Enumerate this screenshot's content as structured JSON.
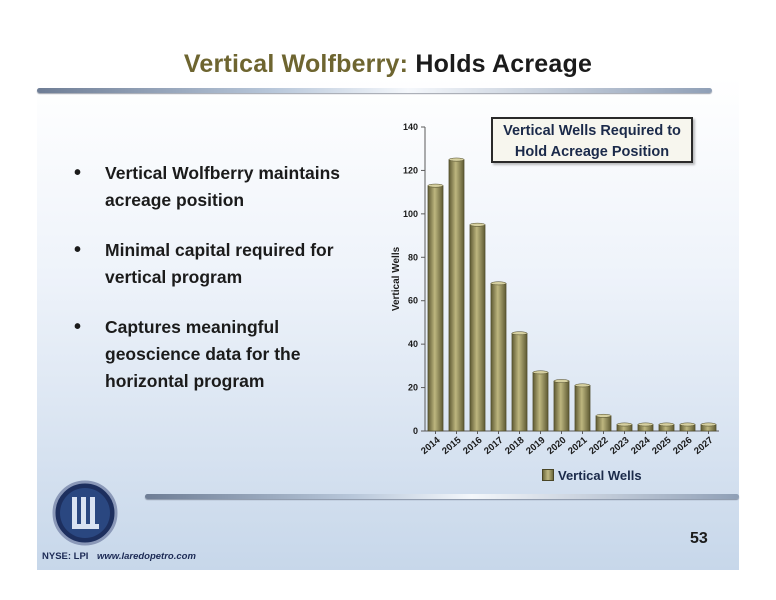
{
  "slide": {
    "title_part1": "Vertical Wolfberry:",
    "title_part2": "Holds Acreage",
    "bullets": [
      "Vertical Wolfberry maintains acreage position",
      "Minimal capital required for vertical program",
      "Captures meaningful geoscience data for the horizontal program"
    ],
    "callout": "Vertical Wells Required to Hold Acreage Position",
    "ticker": "NYSE: LPI",
    "url": "www.laredopetro.com",
    "page_number": "53",
    "colors": {
      "title_accent": "#6e6530",
      "bar": "#a39c62",
      "label_navy": "#1c2a55"
    },
    "icons": {
      "logo": "laredo-circle-logo-icon"
    }
  },
  "chart_data": {
    "type": "bar",
    "title": "Vertical Wells Required to Hold Acreage Position",
    "categories": [
      "2014",
      "2015",
      "2016",
      "2017",
      "2018",
      "2019",
      "2020",
      "2021",
      "2022",
      "2023",
      "2024",
      "2025",
      "2026",
      "2027"
    ],
    "series": [
      {
        "name": "Vertical Wells",
        "values": [
          113,
          125,
          95,
          68,
          45,
          27,
          23,
          21,
          7,
          3,
          3,
          3,
          3,
          3
        ]
      }
    ],
    "ylabel": "Vertical Wells",
    "xlabel": "",
    "ylim": [
      0,
      140
    ],
    "yticks": [
      0,
      20,
      40,
      60,
      80,
      100,
      120,
      140
    ],
    "grid": false,
    "legend": "bottom"
  }
}
